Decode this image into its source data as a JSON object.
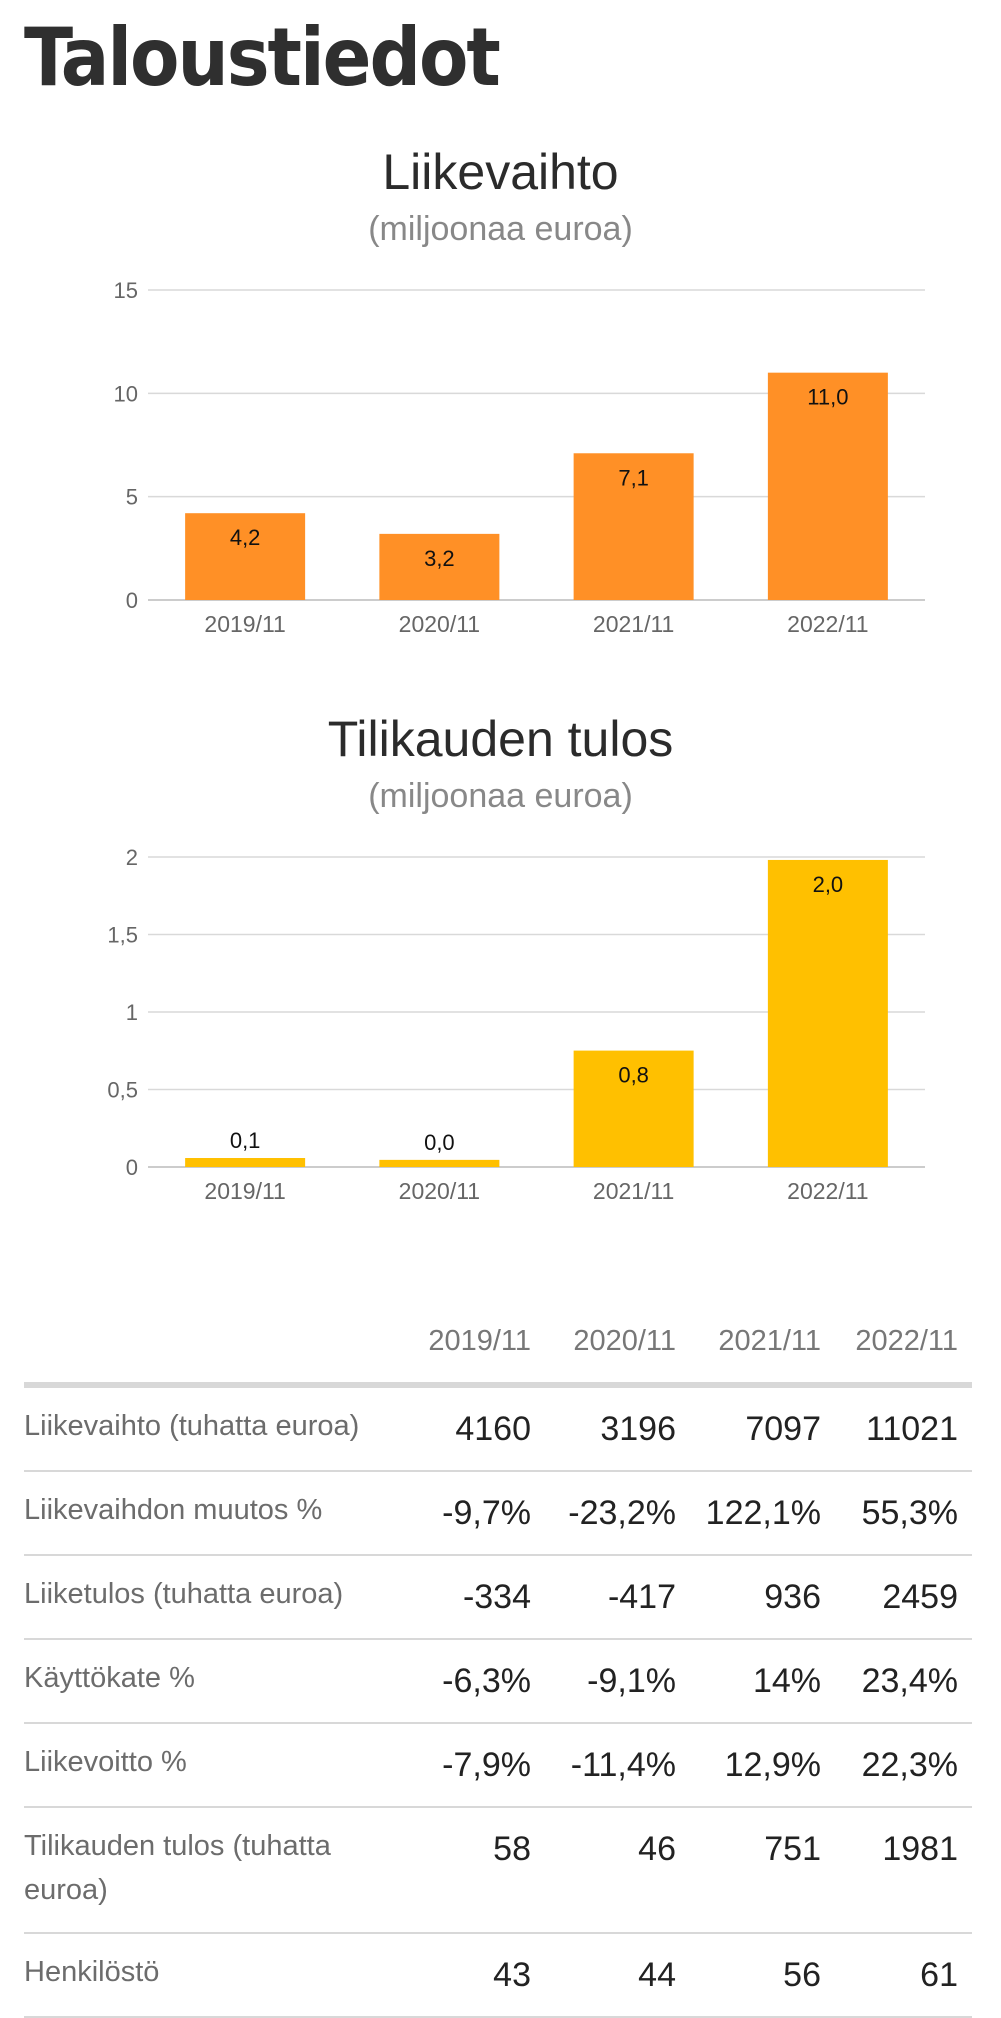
{
  "page": {
    "title": "Taloustiedot"
  },
  "charts": [
    {
      "title": "Liikevaihto",
      "subtitle": "(miljoonaa euroa)"
    },
    {
      "title": "Tilikauden tulos",
      "subtitle": "(miljoonaa euroa)"
    }
  ],
  "chart_data": [
    {
      "type": "bar",
      "title": "Liikevaihto",
      "subtitle": "(miljoonaa euroa)",
      "categories": [
        "2019/11",
        "2020/11",
        "2021/11",
        "2022/11"
      ],
      "values": [
        4.2,
        3.2,
        7.1,
        11.0
      ],
      "value_labels": [
        "4,2",
        "3,2",
        "7,1",
        "11,0"
      ],
      "ylim": [
        0,
        15
      ],
      "yticks": [
        0,
        5,
        10,
        15
      ],
      "ytick_labels": [
        "0",
        "5",
        "10",
        "15"
      ],
      "color": "#ff9026",
      "grid": true
    },
    {
      "type": "bar",
      "title": "Tilikauden tulos",
      "subtitle": "(miljoonaa euroa)",
      "categories": [
        "2019/11",
        "2020/11",
        "2021/11",
        "2022/11"
      ],
      "values": [
        0.058,
        0.046,
        0.751,
        1.981
      ],
      "value_labels": [
        "0,1",
        "0,0",
        "0,8",
        "2,0"
      ],
      "ylim": [
        0,
        2
      ],
      "yticks": [
        0,
        0.5,
        1,
        1.5,
        2
      ],
      "ytick_labels": [
        "0",
        "0,5",
        "1",
        "1,5",
        "2"
      ],
      "color": "#ffc000",
      "grid": true
    }
  ],
  "table": {
    "columns": [
      "2019/11",
      "2020/11",
      "2021/11",
      "2022/11"
    ],
    "rows": [
      {
        "label": "Liikevaihto (tuhatta euroa)",
        "values": [
          "4160",
          "3196",
          "7097",
          "11021"
        ]
      },
      {
        "label": "Liikevaihdon muutos %",
        "values": [
          "-9,7%",
          "-23,2%",
          "122,1%",
          "55,3%"
        ]
      },
      {
        "label": "Liiketulos (tuhatta euroa)",
        "values": [
          "-334",
          "-417",
          "936",
          "2459"
        ]
      },
      {
        "label": "Käyttökate %",
        "values": [
          "-6,3%",
          "-9,1%",
          "14%",
          "23,4%"
        ]
      },
      {
        "label": "Liikevoitto %",
        "values": [
          "-7,9%",
          "-11,4%",
          "12,9%",
          "22,3%"
        ]
      },
      {
        "label": "Tilikauden tulos (tuhatta euroa)",
        "values": [
          "58",
          "46",
          "751",
          "1981"
        ]
      },
      {
        "label": "Henkilöstö",
        "values": [
          "43",
          "44",
          "56",
          "61"
        ]
      }
    ]
  }
}
